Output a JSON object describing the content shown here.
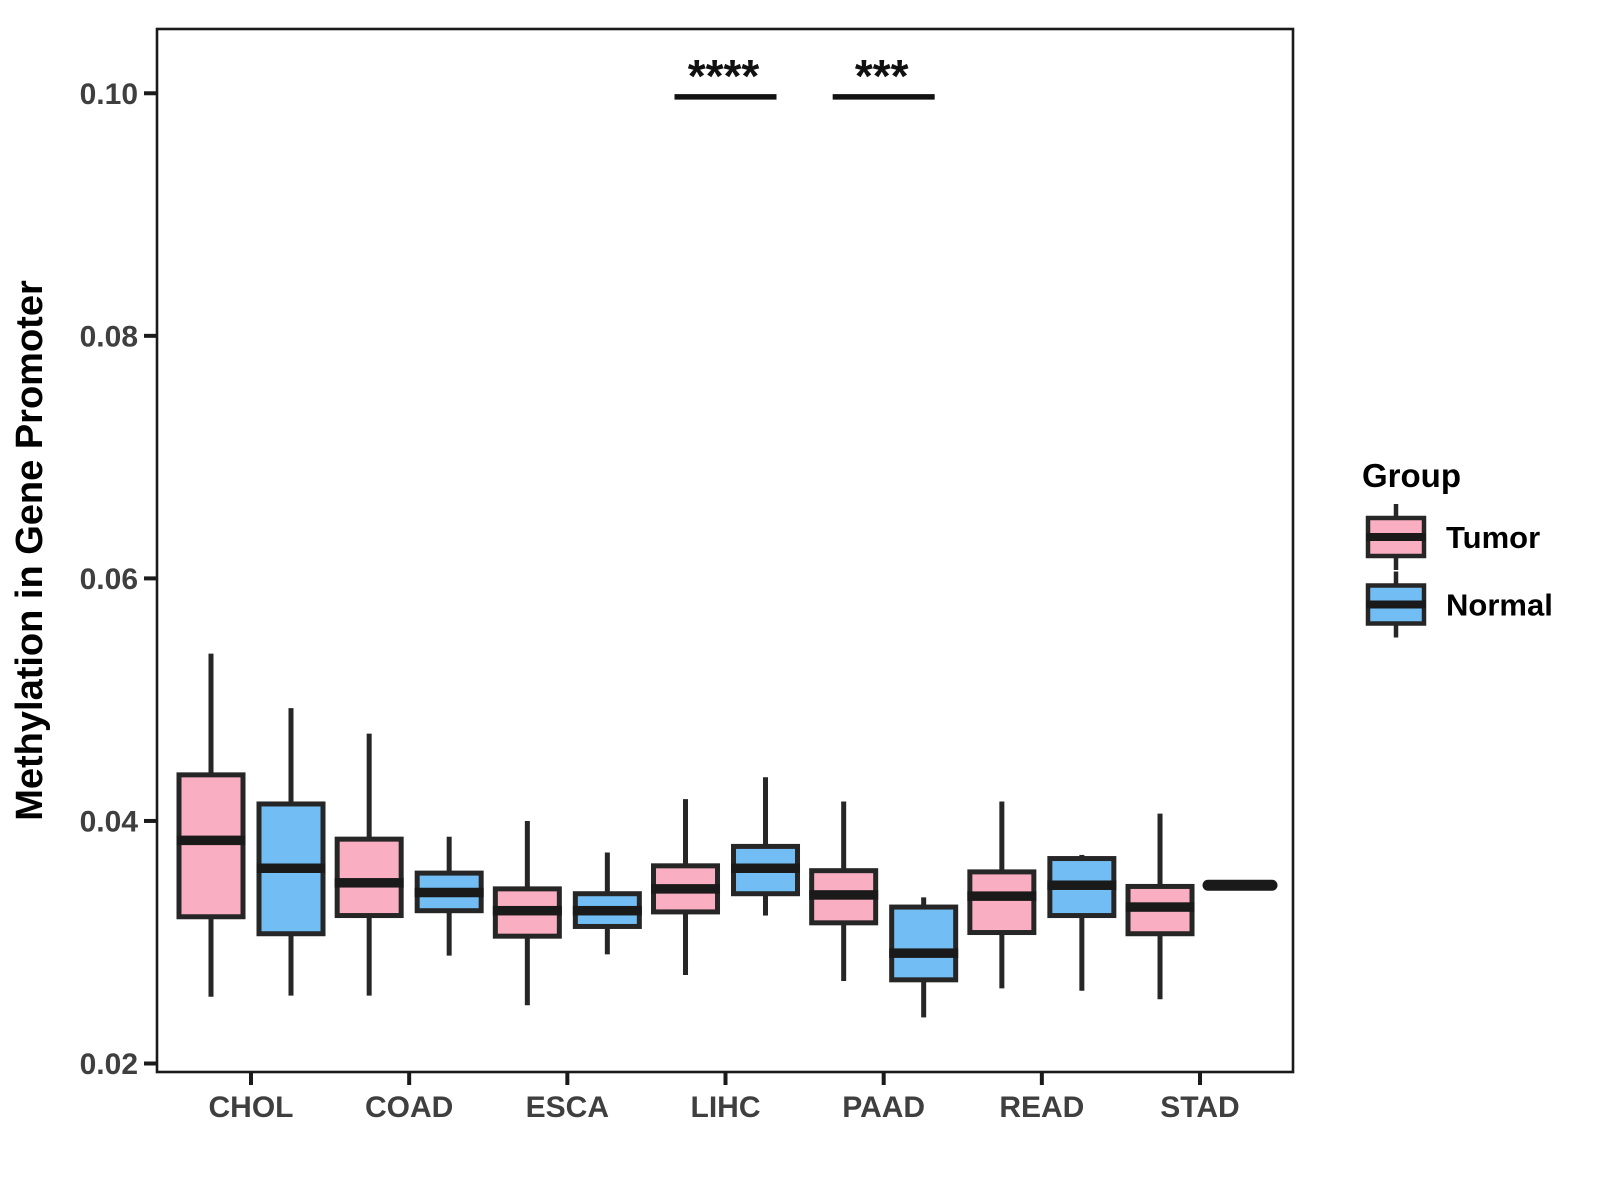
{
  "chart_data": {
    "type": "boxplot",
    "title": "",
    "xlabel": "",
    "ylabel": "Methylation in Gene Promoter",
    "ylim": [
      0.0193,
      0.1053
    ],
    "yticks": [
      0.02,
      0.04,
      0.06,
      0.08,
      0.1
    ],
    "ytick_labels": [
      "0.02",
      "0.04",
      "0.06",
      "0.08",
      "0.10"
    ],
    "categories": [
      "CHOL",
      "COAD",
      "ESCA",
      "LIHC",
      "PAAD",
      "READ",
      "STAD"
    ],
    "groups": [
      {
        "name": "Tumor",
        "fill": "#FAAEC1"
      },
      {
        "name": "Normal",
        "fill": "#72BEF4"
      }
    ],
    "boxes": [
      {
        "category": "CHOL",
        "group": "Tumor",
        "lo": 0.0255,
        "q1": 0.0321,
        "med": 0.0384,
        "q3": 0.0438,
        "hi": 0.0538
      },
      {
        "category": "CHOL",
        "group": "Normal",
        "lo": 0.0256,
        "q1": 0.0307,
        "med": 0.0361,
        "q3": 0.0414,
        "hi": 0.0493
      },
      {
        "category": "COAD",
        "group": "Tumor",
        "lo": 0.0256,
        "q1": 0.0322,
        "med": 0.0349,
        "q3": 0.0385,
        "hi": 0.0472
      },
      {
        "category": "COAD",
        "group": "Normal",
        "lo": 0.0289,
        "q1": 0.0326,
        "med": 0.0341,
        "q3": 0.0357,
        "hi": 0.0387
      },
      {
        "category": "ESCA",
        "group": "Tumor",
        "lo": 0.0248,
        "q1": 0.0305,
        "med": 0.0326,
        "q3": 0.0344,
        "hi": 0.04
      },
      {
        "category": "ESCA",
        "group": "Normal",
        "lo": 0.029,
        "q1": 0.0313,
        "med": 0.0326,
        "q3": 0.034,
        "hi": 0.0374
      },
      {
        "category": "LIHC",
        "group": "Tumor",
        "lo": 0.0273,
        "q1": 0.0325,
        "med": 0.0344,
        "q3": 0.0363,
        "hi": 0.0418
      },
      {
        "category": "LIHC",
        "group": "Normal",
        "lo": 0.0322,
        "q1": 0.034,
        "med": 0.0361,
        "q3": 0.0379,
        "hi": 0.0436
      },
      {
        "category": "PAAD",
        "group": "Tumor",
        "lo": 0.0268,
        "q1": 0.0316,
        "med": 0.0339,
        "q3": 0.0359,
        "hi": 0.0416
      },
      {
        "category": "PAAD",
        "group": "Normal",
        "lo": 0.0238,
        "q1": 0.0269,
        "med": 0.0291,
        "q3": 0.0329,
        "hi": 0.0337
      },
      {
        "category": "READ",
        "group": "Tumor",
        "lo": 0.0262,
        "q1": 0.0308,
        "med": 0.0338,
        "q3": 0.0358,
        "hi": 0.0416
      },
      {
        "category": "READ",
        "group": "Normal",
        "lo": 0.026,
        "q1": 0.0322,
        "med": 0.0347,
        "q3": 0.0369,
        "hi": 0.0372
      },
      {
        "category": "STAD",
        "group": "Tumor",
        "lo": 0.0253,
        "q1": 0.0307,
        "med": 0.0329,
        "q3": 0.0346,
        "hi": 0.0406
      },
      {
        "category": "STAD",
        "group": "Normal",
        "lo": null,
        "q1": null,
        "med": 0.0347,
        "q3": null,
        "hi": null
      }
    ],
    "annotations": [
      {
        "label": "****",
        "category": "LIHC",
        "y": 0.0997
      },
      {
        "label": "***",
        "category": "PAAD",
        "y": 0.0997
      }
    ],
    "legend": {
      "title": "Group",
      "entries": [
        "Tumor",
        "Normal"
      ],
      "position": "right"
    },
    "colors": {
      "box_stroke": "#262626",
      "median": "#1a1a1a",
      "axis": "#1a1a1a",
      "tick_label": "#3f3f3f",
      "panel_background": "#ffffff"
    },
    "grid": "off"
  }
}
